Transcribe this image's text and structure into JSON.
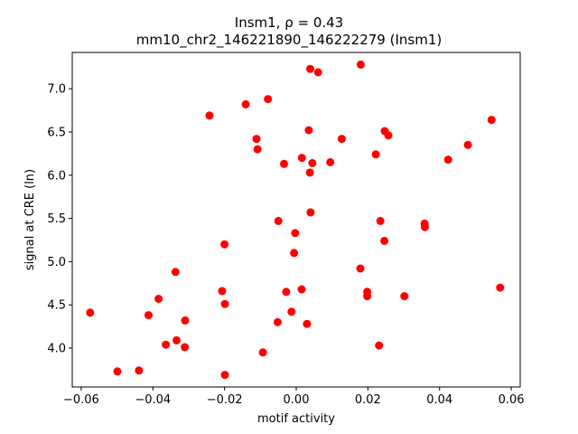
{
  "chart_data": {
    "type": "scatter",
    "title_line1": "Insm1, ρ = 0.43",
    "title_line2": "mm10_chr2_146221890_146222279 (Insm1)",
    "xlabel": "motif activity",
    "ylabel": "signal at CRE (ln)",
    "xlim": [
      -0.0625,
      0.0625
    ],
    "ylim": [
      3.55,
      7.42
    ],
    "xticks": [
      -0.06,
      -0.04,
      -0.02,
      0.0,
      0.02,
      0.04,
      0.06
    ],
    "xtick_labels": [
      "−0.06",
      "−0.04",
      "−0.02",
      "0.00",
      "0.02",
      "0.04",
      "0.06"
    ],
    "yticks": [
      4.0,
      4.5,
      5.0,
      5.5,
      6.0,
      6.5,
      7.0
    ],
    "ytick_labels": [
      "4.0",
      "4.5",
      "5.0",
      "5.5",
      "6.0",
      "6.5",
      "7.0"
    ],
    "grid": false,
    "marker_color": "#ff0000",
    "points": [
      {
        "x": -0.0575,
        "y": 4.41
      },
      {
        "x": -0.0499,
        "y": 3.73
      },
      {
        "x": -0.0439,
        "y": 3.74
      },
      {
        "x": -0.0412,
        "y": 4.38
      },
      {
        "x": -0.0384,
        "y": 4.57
      },
      {
        "x": -0.0364,
        "y": 4.04
      },
      {
        "x": -0.0337,
        "y": 4.88
      },
      {
        "x": -0.0334,
        "y": 4.09
      },
      {
        "x": -0.0311,
        "y": 4.01
      },
      {
        "x": -0.031,
        "y": 4.32
      },
      {
        "x": -0.0242,
        "y": 6.69
      },
      {
        "x": -0.0207,
        "y": 4.66
      },
      {
        "x": -0.02,
        "y": 5.2
      },
      {
        "x": -0.0199,
        "y": 4.51
      },
      {
        "x": -0.0199,
        "y": 3.69
      },
      {
        "x": -0.0141,
        "y": 6.82
      },
      {
        "x": -0.0111,
        "y": 6.42
      },
      {
        "x": -0.0108,
        "y": 6.3
      },
      {
        "x": -0.0093,
        "y": 3.95
      },
      {
        "x": -0.0079,
        "y": 6.88
      },
      {
        "x": -0.0052,
        "y": 4.3
      },
      {
        "x": -0.005,
        "y": 5.47
      },
      {
        "x": -0.0034,
        "y": 6.13
      },
      {
        "x": -0.0028,
        "y": 4.65
      },
      {
        "x": -0.0013,
        "y": 4.42
      },
      {
        "x": -0.0006,
        "y": 5.1
      },
      {
        "x": -0.0003,
        "y": 5.33
      },
      {
        "x": 0.0015,
        "y": 4.68
      },
      {
        "x": 0.0016,
        "y": 6.2
      },
      {
        "x": 0.003,
        "y": 4.28
      },
      {
        "x": 0.0035,
        "y": 6.52
      },
      {
        "x": 0.0038,
        "y": 6.03
      },
      {
        "x": 0.0039,
        "y": 7.23
      },
      {
        "x": 0.004,
        "y": 5.57
      },
      {
        "x": 0.0045,
        "y": 6.14
      },
      {
        "x": 0.0061,
        "y": 7.19
      },
      {
        "x": 0.0095,
        "y": 6.15
      },
      {
        "x": 0.0127,
        "y": 6.42
      },
      {
        "x": 0.0179,
        "y": 4.92
      },
      {
        "x": 0.018,
        "y": 7.28
      },
      {
        "x": 0.0198,
        "y": 4.65
      },
      {
        "x": 0.0198,
        "y": 4.6
      },
      {
        "x": 0.0222,
        "y": 6.24
      },
      {
        "x": 0.0231,
        "y": 4.03
      },
      {
        "x": 0.0235,
        "y": 5.47
      },
      {
        "x": 0.0246,
        "y": 5.24
      },
      {
        "x": 0.0247,
        "y": 6.51
      },
      {
        "x": 0.0257,
        "y": 6.46
      },
      {
        "x": 0.0302,
        "y": 4.6
      },
      {
        "x": 0.0358,
        "y": 5.44
      },
      {
        "x": 0.0359,
        "y": 5.4
      },
      {
        "x": 0.0424,
        "y": 6.18
      },
      {
        "x": 0.0479,
        "y": 6.35
      },
      {
        "x": 0.0545,
        "y": 6.64
      },
      {
        "x": 0.0569,
        "y": 4.7
      }
    ]
  }
}
